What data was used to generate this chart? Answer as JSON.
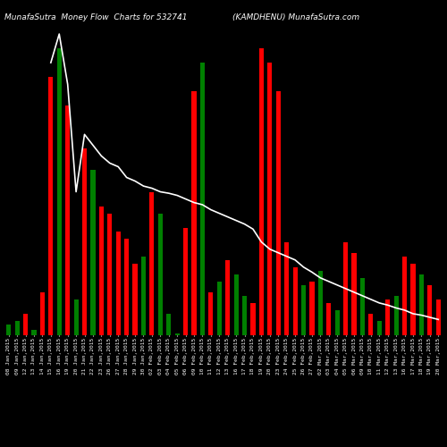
{
  "title_left": "MunafaSutra  Money Flow  Charts for 532741",
  "title_right": "(KAMDHENU) MunafaSutra.com",
  "background_color": "#000000",
  "line_color": "#ffffff",
  "categories": [
    "08 Jan,2015",
    "09 Jan,2015",
    "12 Jan,2015",
    "13 Jan,2015",
    "14 Jan,2015",
    "15 Jan,2015",
    "16 Jan,2015",
    "19 Jan,2015",
    "20 Jan,2015",
    "21 Jan,2015",
    "22 Jan,2015",
    "23 Jan,2015",
    "26 Jan,2015",
    "27 Jan,2015",
    "28 Jan,2015",
    "29 Jan,2015",
    "30 Jan,2015",
    "02 Feb,2015",
    "03 Feb,2015",
    "04 Feb,2015",
    "05 Feb,2015",
    "06 Feb,2015",
    "09 Feb,2015",
    "10 Feb,2015",
    "11 Feb,2015",
    "12 Feb,2015",
    "13 Feb,2015",
    "16 Feb,2015",
    "17 Feb,2015",
    "18 Feb,2015",
    "19 Feb,2015",
    "20 Feb,2015",
    "23 Feb,2015",
    "24 Feb,2015",
    "25 Feb,2015",
    "26 Feb,2015",
    "27 Feb,2015",
    "02 Mar,2015",
    "03 Mar,2015",
    "04 Mar,2015",
    "05 Mar,2015",
    "06 Mar,2015",
    "09 Mar,2015",
    "10 Mar,2015",
    "11 Mar,2015",
    "12 Mar,2015",
    "13 Mar,2015",
    "16 Mar,2015",
    "17 Mar,2015",
    "18 Mar,2015",
    "19 Mar,2015",
    "20 Mar,2015"
  ],
  "bar_values": [
    15,
    20,
    30,
    8,
    60,
    360,
    400,
    320,
    50,
    260,
    230,
    180,
    170,
    145,
    135,
    100,
    110,
    200,
    170,
    30,
    2,
    150,
    340,
    380,
    60,
    75,
    105,
    85,
    55,
    45,
    400,
    380,
    340,
    130,
    95,
    70,
    75,
    90,
    45,
    35,
    130,
    115,
    80,
    30,
    20,
    50,
    55,
    110,
    100,
    85,
    70,
    50
  ],
  "bar_colors": [
    "green",
    "green",
    "red",
    "green",
    "red",
    "red",
    "green",
    "red",
    "green",
    "red",
    "green",
    "red",
    "red",
    "red",
    "red",
    "red",
    "green",
    "red",
    "green",
    "green",
    "green",
    "red",
    "red",
    "green",
    "red",
    "green",
    "red",
    "green",
    "green",
    "red",
    "red",
    "red",
    "red",
    "red",
    "red",
    "green",
    "red",
    "green",
    "red",
    "green",
    "red",
    "red",
    "green",
    "red",
    "green",
    "red",
    "green",
    "red",
    "red",
    "green",
    "red",
    "red"
  ],
  "line_values": [
    null,
    null,
    null,
    null,
    null,
    380,
    420,
    350,
    200,
    280,
    265,
    250,
    240,
    235,
    220,
    215,
    208,
    205,
    200,
    198,
    195,
    190,
    185,
    182,
    175,
    170,
    165,
    160,
    155,
    148,
    130,
    120,
    115,
    110,
    105,
    95,
    88,
    80,
    75,
    70,
    65,
    60,
    55,
    50,
    45,
    42,
    38,
    35,
    30,
    28,
    25,
    22
  ],
  "ylim_max": 430,
  "title_fontsize": 6.5,
  "tick_fontsize": 4.5
}
